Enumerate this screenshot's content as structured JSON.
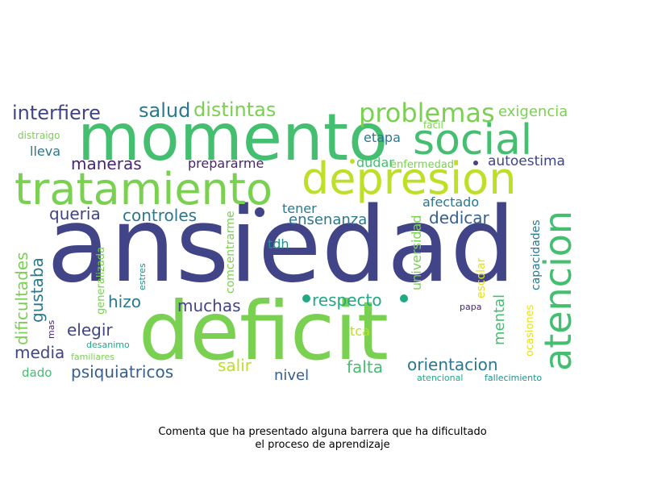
{
  "caption": {
    "line1": "Comenta que ha presentado alguna barrera que ha dificultado",
    "line2": "el proceso de aprendizaje"
  },
  "palette": {
    "navy": "#414487",
    "blue": "#355f8d",
    "teal": "#2a788e",
    "teal2": "#21918c",
    "green": "#22a884",
    "green2": "#44bf70",
    "lime": "#7ad151",
    "yellowgreen": "#bddf26",
    "yellow": "#e3e418",
    "purple": "#482475"
  },
  "words": [
    {
      "text": "ansiedad",
      "color": "#414487"
    },
    {
      "text": "deficit",
      "color": "#7ad151"
    },
    {
      "text": "momento",
      "color": "#44bf70"
    },
    {
      "text": "tratamiento",
      "color": "#7ad151"
    },
    {
      "text": "depresion",
      "color": "#bddf26"
    },
    {
      "text": "social",
      "color": "#44bf70"
    },
    {
      "text": "atencion",
      "color": "#44bf70"
    },
    {
      "text": "problemas",
      "color": "#7ad151"
    },
    {
      "text": "interfiere",
      "color": "#414487"
    },
    {
      "text": "salud",
      "color": "#2a788e"
    },
    {
      "text": "distintas",
      "color": "#7ad151"
    },
    {
      "text": "exigencia",
      "color": "#7ad151"
    },
    {
      "text": "distraigo",
      "color": "#7ad151"
    },
    {
      "text": "facil",
      "color": "#7ad151"
    },
    {
      "text": "lleva",
      "color": "#2a788e"
    },
    {
      "text": "etapa",
      "color": "#2a788e"
    },
    {
      "text": "maneras",
      "color": "#482475"
    },
    {
      "text": "prepararme",
      "color": "#482475"
    },
    {
      "text": "dudar",
      "color": "#44bf70"
    },
    {
      "text": "enfermedad",
      "color": "#7ad151"
    },
    {
      "text": "autoestima",
      "color": "#414487"
    },
    {
      "text": "afectado",
      "color": "#2a788e"
    },
    {
      "text": "queria",
      "color": "#414487"
    },
    {
      "text": "controles",
      "color": "#2a788e"
    },
    {
      "text": "tener",
      "color": "#2a788e"
    },
    {
      "text": "ensenanza",
      "color": "#2a788e"
    },
    {
      "text": "dedicar",
      "color": "#355f8d"
    },
    {
      "text": "dificultades",
      "color": "#7ad151"
    },
    {
      "text": "gustaba",
      "color": "#2a788e"
    },
    {
      "text": "generalizada",
      "color": "#7ad151"
    },
    {
      "text": "comcentrarme",
      "color": "#7ad151"
    },
    {
      "text": "tdh",
      "color": "#21918c"
    },
    {
      "text": "estres",
      "color": "#21918c"
    },
    {
      "text": "universidad",
      "color": "#7ad151"
    },
    {
      "text": "escolar",
      "color": "#e3e418"
    },
    {
      "text": "capacidades",
      "color": "#2a788e"
    },
    {
      "text": "hizo",
      "color": "#2a788e"
    },
    {
      "text": "muchas",
      "color": "#414487"
    },
    {
      "text": "respecto",
      "color": "#22a884"
    },
    {
      "text": "mental",
      "color": "#44bf70"
    },
    {
      "text": "ocasiones",
      "color": "#e3e418"
    },
    {
      "text": "papa",
      "color": "#482475"
    },
    {
      "text": "mas",
      "color": "#482475"
    },
    {
      "text": "elegir",
      "color": "#414487"
    },
    {
      "text": "desanimo",
      "color": "#22a884"
    },
    {
      "text": "media",
      "color": "#414487"
    },
    {
      "text": "familiares",
      "color": "#7ad151"
    },
    {
      "text": "tca",
      "color": "#bddf26"
    },
    {
      "text": "psiquiatricos",
      "color": "#355f8d"
    },
    {
      "text": "salir",
      "color": "#bddf26"
    },
    {
      "text": "falta",
      "color": "#44bf70"
    },
    {
      "text": "orientacion",
      "color": "#2a788e"
    },
    {
      "text": "nivel",
      "color": "#355f8d"
    },
    {
      "text": "dado",
      "color": "#44bf70"
    },
    {
      "text": "atencional",
      "color": "#22a884"
    },
    {
      "text": "fallecimiento",
      "color": "#21918c"
    }
  ]
}
